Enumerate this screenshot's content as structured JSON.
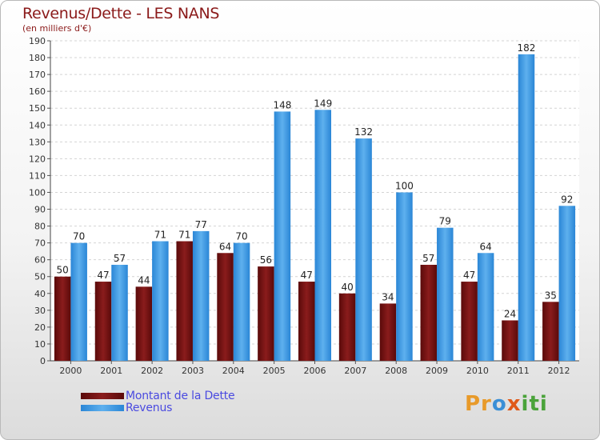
{
  "title": "Revenus/Dette - LES NANS",
  "subtitle": "(en milliers d'€)",
  "colors": {
    "dette": "#6b0f0f",
    "revenus": "#2f8fe0"
  },
  "legend": [
    {
      "label": "Montant de la Dette",
      "series": "dette"
    },
    {
      "label": "Revenus",
      "series": "revenus"
    }
  ],
  "logo": {
    "parts": [
      "Pr",
      "o",
      "x",
      "iti"
    ]
  },
  "chart_data": {
    "type": "bar",
    "categories": [
      "2000",
      "2001",
      "2002",
      "2003",
      "2004",
      "2005",
      "2006",
      "2007",
      "2008",
      "2009",
      "2010",
      "2011",
      "2012"
    ],
    "series": [
      {
        "name": "Montant de la Dette",
        "values": [
          50,
          47,
          44,
          71,
          64,
          56,
          47,
          40,
          34,
          57,
          47,
          24,
          35
        ]
      },
      {
        "name": "Revenus",
        "values": [
          70,
          57,
          71,
          77,
          70,
          148,
          149,
          132,
          100,
          79,
          64,
          182,
          92
        ]
      }
    ],
    "ylim": [
      0,
      190
    ],
    "ytick_step": 10,
    "grid": true,
    "legend_position": "bottom-left"
  }
}
